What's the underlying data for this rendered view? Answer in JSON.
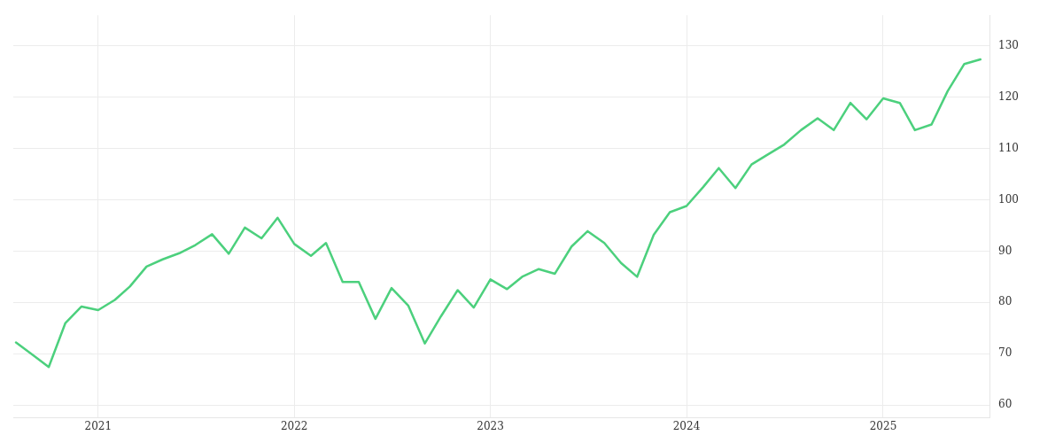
{
  "chart_data": {
    "type": "line",
    "x": [
      "2020-08",
      "2020-09",
      "2020-10",
      "2020-11",
      "2020-12",
      "2021-01",
      "2021-02",
      "2021-03",
      "2021-04",
      "2021-05",
      "2021-06",
      "2021-07",
      "2021-08",
      "2021-09",
      "2021-10",
      "2021-11",
      "2021-12",
      "2022-01",
      "2022-02",
      "2022-03",
      "2022-04",
      "2022-05",
      "2022-06",
      "2022-07",
      "2022-08",
      "2022-09",
      "2022-10",
      "2022-11",
      "2022-12",
      "2023-01",
      "2023-02",
      "2023-03",
      "2023-04",
      "2023-05",
      "2023-06",
      "2023-07",
      "2023-08",
      "2023-09",
      "2023-10",
      "2023-11",
      "2023-12",
      "2024-01",
      "2024-02",
      "2024-03",
      "2024-04",
      "2024-05",
      "2024-06",
      "2024-07",
      "2024-08",
      "2024-09",
      "2024-10",
      "2024-11",
      "2024-12",
      "2025-01",
      "2025-02",
      "2025-03",
      "2025-04",
      "2025-05",
      "2025-06",
      "2025-07"
    ],
    "series": [
      {
        "color": "#4cd07d",
        "values": [
          72.2,
          69.8,
          67.4,
          76.0,
          79.2,
          78.5,
          80.5,
          83.1,
          87.0,
          88.4,
          89.6,
          91.2,
          93.3,
          89.5,
          94.6,
          92.5,
          96.5,
          91.4,
          89.1,
          91.6,
          84.0,
          84.0,
          76.8,
          82.8,
          79.4,
          72.0,
          77.3,
          82.4,
          79.0,
          84.5,
          82.6,
          85.0,
          86.5,
          85.6,
          90.9,
          93.9,
          91.6,
          87.7,
          85.0,
          93.2,
          97.6,
          98.8,
          102.5,
          106.2,
          102.3,
          106.9,
          108.9,
          110.8,
          113.6,
          115.9,
          113.6,
          118.9,
          115.7,
          119.8,
          118.9,
          113.6,
          114.7,
          121.2,
          126.5,
          127.4
        ]
      }
    ],
    "xlim": [
      "2020-07-27",
      "2025-07-18"
    ],
    "xticks": [
      "2021",
      "2022",
      "2023",
      "2024",
      "2025"
    ],
    "ylim": [
      57.5,
      136
    ],
    "yticks": [
      60,
      70,
      80,
      90,
      100,
      110,
      120,
      130
    ],
    "grid": true,
    "legend": false,
    "marker": "none",
    "line_style": "solid"
  }
}
